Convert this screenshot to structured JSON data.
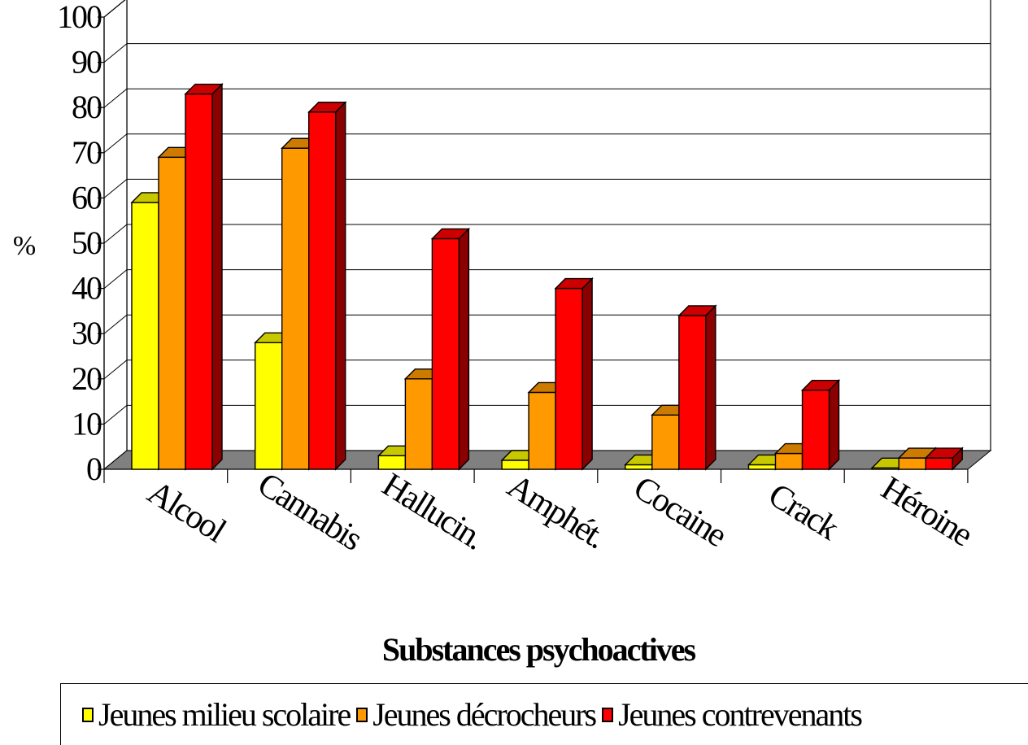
{
  "chart_data": {
    "type": "bar",
    "title": "",
    "xlabel": "Substances psychoactives",
    "ylabel": "%",
    "ylim": [
      0,
      100
    ],
    "yticks": [
      "0",
      "10",
      "20",
      "30",
      "40",
      "50",
      "60",
      "70",
      "80",
      "90",
      "100"
    ],
    "grid": true,
    "legend_position": "bottom",
    "categories": [
      "Alcool",
      "Cannabis",
      "Hallucin.",
      "Amphét.",
      "Cocaine",
      "Crack",
      "Héroine"
    ],
    "series": [
      {
        "name": "Jeunes milieu scolaire",
        "color": "#FFFF00",
        "side": "#8B8B00",
        "top": "#C8C800",
        "values": [
          59,
          28,
          3,
          2,
          1,
          1,
          0.3
        ]
      },
      {
        "name": "Jeunes décrocheurs",
        "color": "#FF9900",
        "side": "#8B5200",
        "top": "#CC7A00",
        "values": [
          69,
          71,
          20,
          17,
          12,
          3.5,
          2.5
        ]
      },
      {
        "name": "Jeunes contrevenants",
        "color": "#FF0000",
        "side": "#8B0000",
        "top": "#CC0000",
        "values": [
          83,
          79,
          51,
          40,
          34,
          17.5,
          2.5
        ]
      }
    ]
  }
}
